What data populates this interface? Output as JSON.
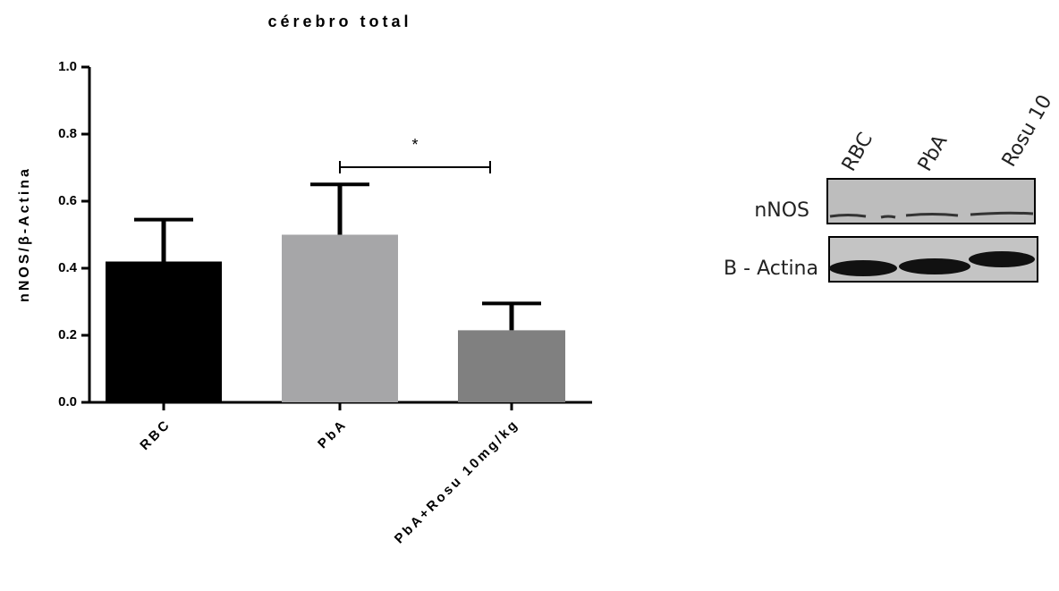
{
  "chart_data": {
    "type": "bar",
    "title": "cérebro total",
    "y_label": "nNOS/β-Actina",
    "categories": [
      "RBC",
      "PbA",
      "PbA+Rosu 10mg/kg"
    ],
    "values": [
      0.42,
      0.5,
      0.215
    ],
    "errors": [
      0.125,
      0.15,
      0.08
    ],
    "colors": [
      "#000000",
      "#a6a6a8",
      "#808080"
    ],
    "ylim": [
      0,
      1
    ],
    "yticks": [
      {
        "value": 0,
        "label": "0.0"
      },
      0.2,
      0.4,
      0.6,
      0.8,
      {
        "value": 1,
        "label": "1.0"
      }
    ],
    "annotations": [
      {
        "text": "*",
        "from": 1,
        "to": 2
      }
    ]
  },
  "blot": {
    "lanes": [
      "RBC",
      "PbA",
      "Rosu 10"
    ],
    "rows": [
      "nNOS",
      "B - Actina"
    ]
  }
}
